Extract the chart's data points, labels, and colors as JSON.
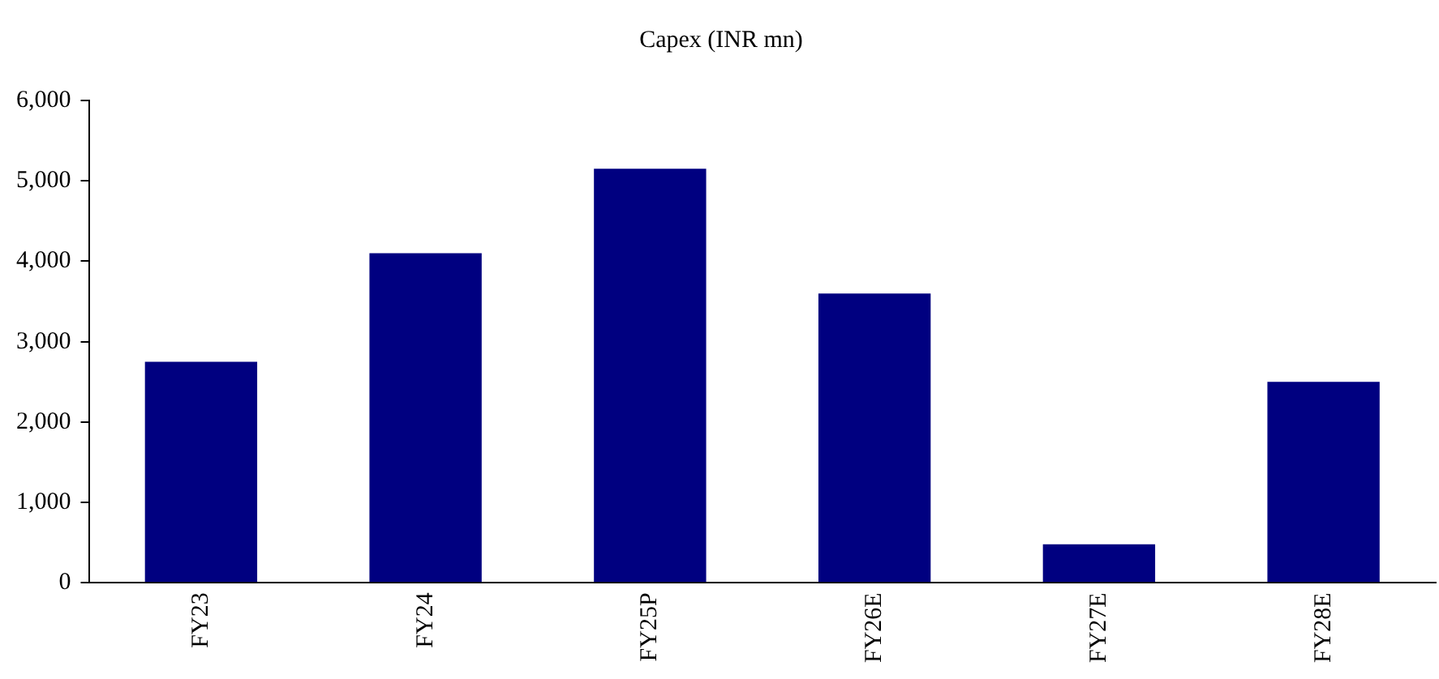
{
  "chart_data": {
    "type": "bar",
    "title": "Capex (INR mn)",
    "categories": [
      "FY23",
      "FY24",
      "FY25P",
      "FY26E",
      "FY27E",
      "FY28E"
    ],
    "values": [
      2750,
      4100,
      5150,
      3600,
      480,
      2500
    ],
    "color": "#000080",
    "ylim": [
      0,
      6000
    ],
    "yticks": [
      {
        "value": 0,
        "label": "0"
      },
      {
        "value": 1000,
        "label": "1,000"
      },
      {
        "value": 2000,
        "label": "2,000"
      },
      {
        "value": 3000,
        "label": "3,000"
      },
      {
        "value": 4000,
        "label": "4,000"
      },
      {
        "value": 5000,
        "label": "5,000"
      },
      {
        "value": 6000,
        "label": "6,000"
      }
    ],
    "grid": false,
    "legend": false
  }
}
